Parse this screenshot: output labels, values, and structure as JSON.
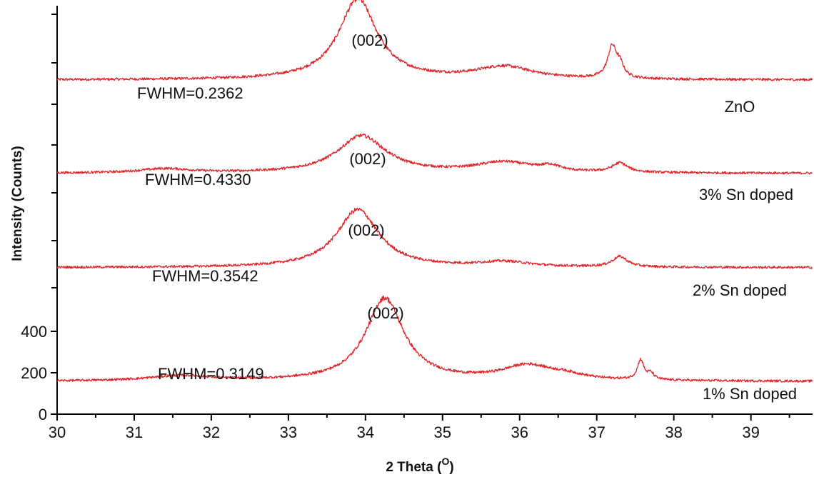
{
  "chart_data": {
    "type": "line",
    "title": "",
    "xlabel": "2 Theta",
    "xlabel_unit": "O",
    "ylabel": "Intensity (Counts)",
    "xlim": [
      30,
      39.8
    ],
    "x_ticks": [
      30,
      31,
      32,
      33,
      34,
      35,
      36,
      37,
      38,
      39
    ],
    "y_ticks": [
      0,
      200,
      400
    ],
    "grid": false,
    "line_color": "#e0262b",
    "series": [
      {
        "key": "zno",
        "name": "ZnO",
        "fwhm_label": "FWHM=0.2362",
        "peak_label": "(002)",
        "baseline_counts": 55,
        "noise_amp_counts": 5,
        "peaks": [
          {
            "center": 33.9,
            "height": 390,
            "width": 0.3
          },
          {
            "center": 35.8,
            "height": 60,
            "width": 0.45
          },
          {
            "center": 37.2,
            "height": 150,
            "width": 0.07
          },
          {
            "center": 37.3,
            "height": 55,
            "width": 0.06
          }
        ]
      },
      {
        "key": "sn3",
        "name": "3% Sn doped",
        "fwhm_label": "FWHM=0.4330",
        "peak_label": "(002)",
        "baseline_counts": 35,
        "noise_amp_counts": 5,
        "peaks": [
          {
            "center": 31.4,
            "height": 20,
            "width": 0.4
          },
          {
            "center": 33.95,
            "height": 180,
            "width": 0.38
          },
          {
            "center": 35.8,
            "height": 50,
            "width": 0.45
          },
          {
            "center": 36.4,
            "height": 25,
            "width": 0.15
          },
          {
            "center": 37.3,
            "height": 45,
            "width": 0.12
          }
        ]
      },
      {
        "key": "sn2",
        "name": "2% Sn doped",
        "fwhm_label": "FWHM=0.3542",
        "peak_label": "(002)",
        "baseline_counts": 35,
        "noise_amp_counts": 5,
        "peaks": [
          {
            "center": 33.9,
            "height": 280,
            "width": 0.33
          },
          {
            "center": 35.8,
            "height": 25,
            "width": 0.4
          },
          {
            "center": 37.3,
            "height": 50,
            "width": 0.12
          }
        ]
      },
      {
        "key": "sn1",
        "name": "1% Sn doped",
        "fwhm_label": "FWHM=0.3149",
        "peak_label": "(002)",
        "baseline_counts": 30,
        "noise_amp_counts": 5,
        "peaks": [
          {
            "center": 31.6,
            "height": 25,
            "width": 0.5
          },
          {
            "center": 34.25,
            "height": 400,
            "width": 0.3
          },
          {
            "center": 36.1,
            "height": 70,
            "width": 0.4
          },
          {
            "center": 36.6,
            "height": 20,
            "width": 0.3
          },
          {
            "center": 37.57,
            "height": 95,
            "width": 0.05
          },
          {
            "center": 37.7,
            "height": 30,
            "width": 0.05
          }
        ]
      }
    ]
  }
}
